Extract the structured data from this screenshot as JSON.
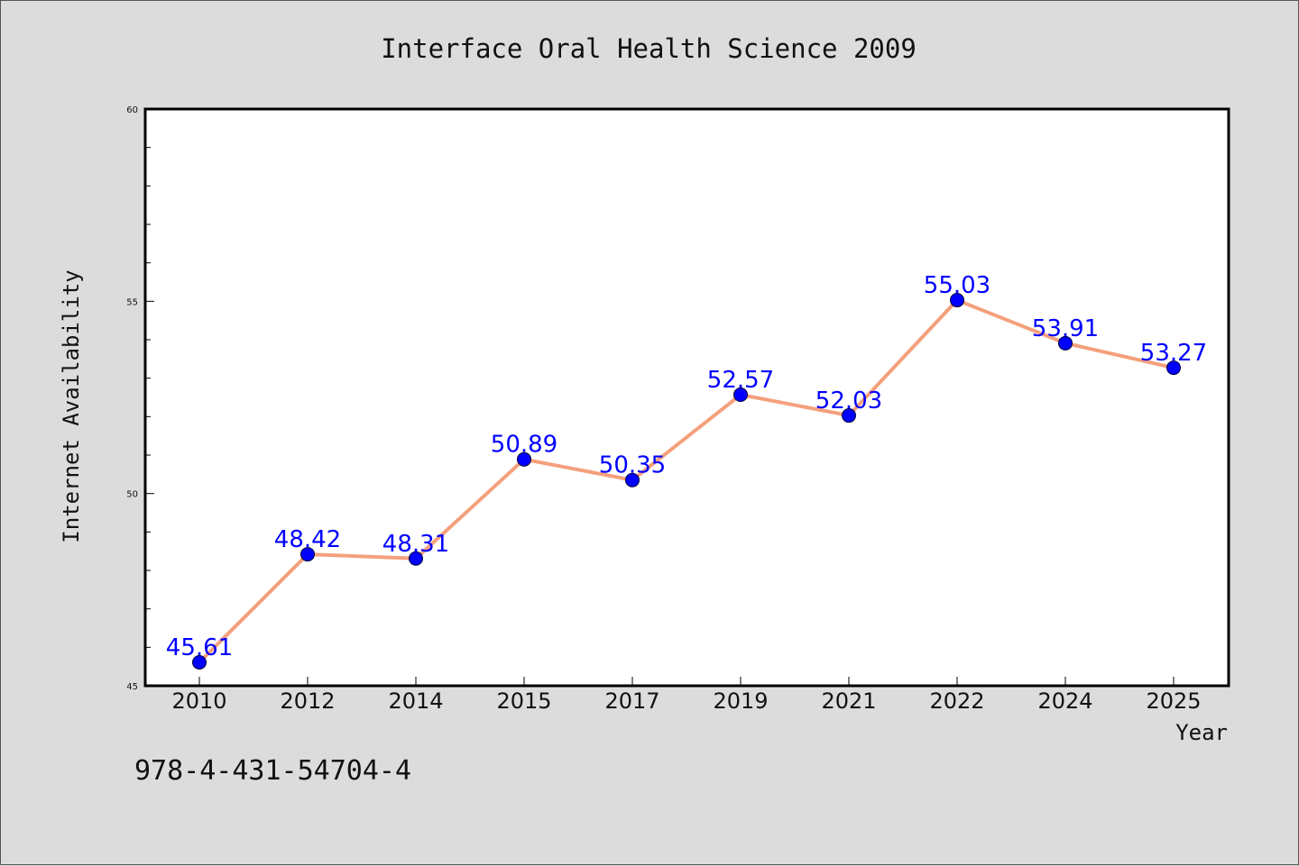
{
  "chart_data": {
    "type": "line",
    "title": "Interface Oral Health Science 2009",
    "xlabel": "Year",
    "ylabel": "Internet Availability",
    "categories": [
      "2010",
      "2012",
      "2014",
      "2015",
      "2017",
      "2019",
      "2021",
      "2022",
      "2024",
      "2025"
    ],
    "series": [
      {
        "values": [
          45.61,
          48.42,
          48.31,
          50.89,
          50.35,
          52.57,
          52.03,
          55.03,
          53.91,
          53.27
        ],
        "data_labels": [
          "45.61",
          "48.42",
          "48.31",
          "50.89",
          "50.35",
          "52.57",
          "52.03",
          "55.03",
          "53.91",
          "53.27"
        ],
        "line_color": "#f4a07c",
        "marker_color": "#0000ff"
      }
    ],
    "ylim": [
      45,
      60
    ],
    "yticks": [
      "45",
      "50",
      "55",
      "60"
    ],
    "grid": false,
    "legend": "none"
  },
  "footer": {
    "text": "978-4-431-54704-4"
  },
  "colors": {
    "background": "#dcdcdc",
    "plot_background": "#ffffff",
    "data_label": "#0000ff"
  }
}
